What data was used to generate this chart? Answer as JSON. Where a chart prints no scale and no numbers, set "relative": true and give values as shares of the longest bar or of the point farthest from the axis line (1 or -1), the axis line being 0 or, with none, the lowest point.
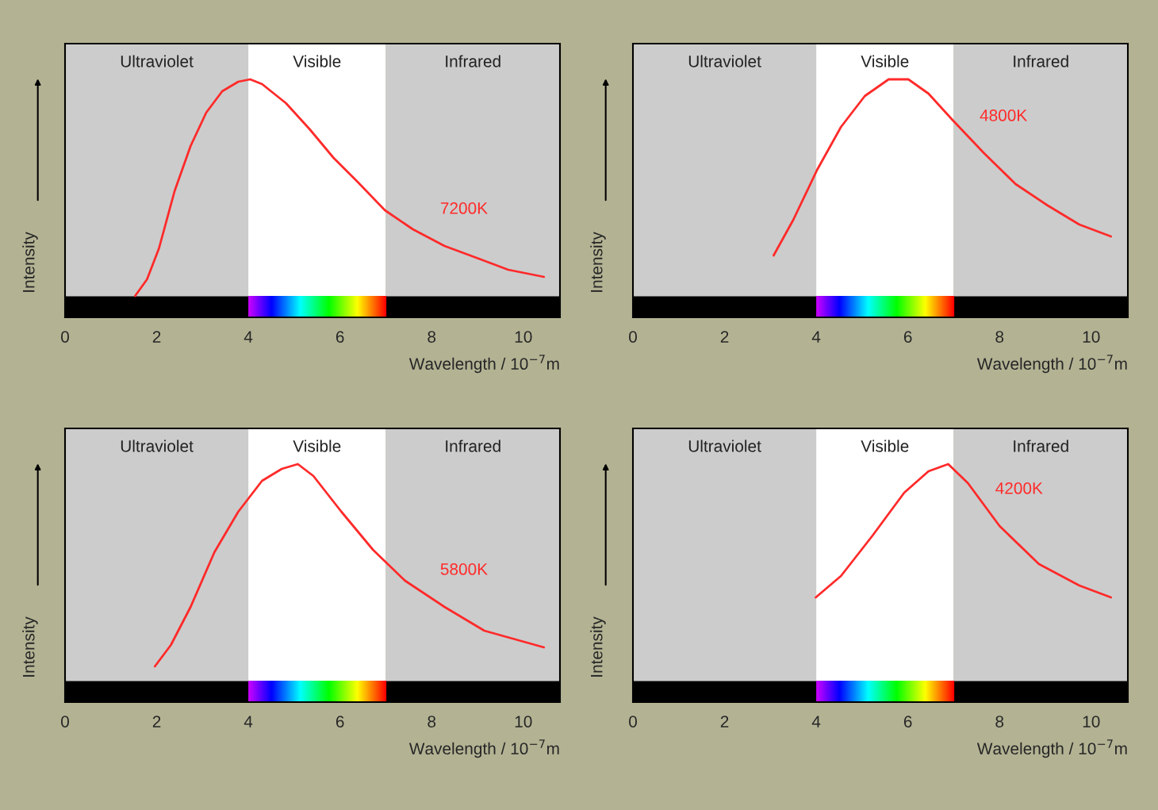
{
  "chart_data": [
    {
      "type": "line",
      "relative": true,
      "xlabel": "Wavelength / 10$^{−7}$m",
      "ylabel": "Intensity",
      "xlim": [
        0,
        10.8
      ],
      "xticks": [
        0,
        2,
        4,
        6,
        8,
        10
      ],
      "legend": false,
      "grid": false,
      "bands": [
        {
          "axis": "x",
          "from": 0,
          "to": 4,
          "label": "Ultraviolet",
          "color": "#cccccc"
        },
        {
          "axis": "x",
          "from": 4,
          "to": 7,
          "label": "Visible",
          "color": "#ffffff"
        },
        {
          "axis": "x",
          "from": 7,
          "to": 10.8,
          "label": "Infrared",
          "color": "#cccccc"
        }
      ],
      "series": [
        {
          "name": "7200K",
          "color": "#ff2a2a",
          "x": [
            1.53,
            1.79,
            2.05,
            2.39,
            2.74,
            3.08,
            3.43,
            3.78,
            4.04,
            4.3,
            4.82,
            5.34,
            5.86,
            6.38,
            6.98,
            7.59,
            8.28,
            8.98,
            9.67,
            10.45
          ],
          "values": [
            0.09,
            0.16,
            0.29,
            0.53,
            0.72,
            0.86,
            0.95,
            0.99,
            1.0,
            0.98,
            0.9,
            0.79,
            0.67,
            0.57,
            0.45,
            0.37,
            0.3,
            0.25,
            0.2,
            0.17
          ]
        }
      ]
    },
    {
      "type": "line",
      "relative": true,
      "xlabel": "Wavelength / 10$^{−7}$m",
      "ylabel": "Intensity",
      "xlim": [
        0,
        10.8
      ],
      "xticks": [
        0,
        2,
        4,
        6,
        8,
        10
      ],
      "legend": false,
      "grid": false,
      "bands": [
        {
          "axis": "x",
          "from": 0,
          "to": 4,
          "label": "Ultraviolet",
          "color": "#cccccc"
        },
        {
          "axis": "x",
          "from": 4,
          "to": 7,
          "label": "Visible",
          "color": "#ffffff"
        },
        {
          "axis": "x",
          "from": 7,
          "to": 10.8,
          "label": "Infrared",
          "color": "#cccccc"
        }
      ],
      "series": [
        {
          "name": "4800K",
          "color": "#ff2a2a",
          "x": [
            3.07,
            3.5,
            4.02,
            4.54,
            5.06,
            5.58,
            6.01,
            6.45,
            6.97,
            7.66,
            8.35,
            9.05,
            9.74,
            10.43
          ],
          "values": [
            0.26,
            0.41,
            0.62,
            0.8,
            0.93,
            1.0,
            1.0,
            0.94,
            0.83,
            0.69,
            0.56,
            0.47,
            0.39,
            0.34
          ]
        }
      ]
    },
    {
      "type": "line",
      "relative": true,
      "xlabel": "Wavelength / 10$^{−7}$m",
      "ylabel": "Intensity",
      "xlim": [
        0,
        10.8
      ],
      "xticks": [
        0,
        2,
        4,
        6,
        8,
        10
      ],
      "legend": false,
      "grid": false,
      "bands": [
        {
          "axis": "x",
          "from": 0,
          "to": 4,
          "label": "Ultraviolet",
          "color": "#cccccc"
        },
        {
          "axis": "x",
          "from": 4,
          "to": 7,
          "label": "Visible",
          "color": "#ffffff"
        },
        {
          "axis": "x",
          "from": 7,
          "to": 10.8,
          "label": "Infrared",
          "color": "#cccccc"
        }
      ],
      "series": [
        {
          "name": "5800K",
          "color": "#ff2a2a",
          "x": [
            1.96,
            2.31,
            2.74,
            3.26,
            3.78,
            4.3,
            4.73,
            5.08,
            5.42,
            6.03,
            6.72,
            7.42,
            8.28,
            9.15,
            10.45
          ],
          "values": [
            0.15,
            0.24,
            0.4,
            0.63,
            0.8,
            0.93,
            0.98,
            1.0,
            0.95,
            0.8,
            0.64,
            0.51,
            0.4,
            0.3,
            0.23
          ]
        }
      ]
    },
    {
      "type": "line",
      "relative": true,
      "xlabel": "Wavelength / 10$^{−7}$m",
      "ylabel": "Intensity",
      "xlim": [
        0,
        10.8
      ],
      "xticks": [
        0,
        2,
        4,
        6,
        8,
        10
      ],
      "legend": false,
      "grid": false,
      "bands": [
        {
          "axis": "x",
          "from": 0,
          "to": 4,
          "label": "Ultraviolet",
          "color": "#cccccc"
        },
        {
          "axis": "x",
          "from": 4,
          "to": 7,
          "label": "Visible",
          "color": "#ffffff"
        },
        {
          "axis": "x",
          "from": 7,
          "to": 10.8,
          "label": "Infrared",
          "color": "#cccccc"
        }
      ],
      "series": [
        {
          "name": "4200K",
          "color": "#ff2a2a",
          "x": [
            3.99,
            4.54,
            5.23,
            5.92,
            6.45,
            6.88,
            7.31,
            8.0,
            8.86,
            9.74,
            10.43
          ],
          "values": [
            0.44,
            0.53,
            0.7,
            0.88,
            0.97,
            1.0,
            0.92,
            0.74,
            0.58,
            0.49,
            0.44
          ]
        }
      ]
    }
  ]
}
